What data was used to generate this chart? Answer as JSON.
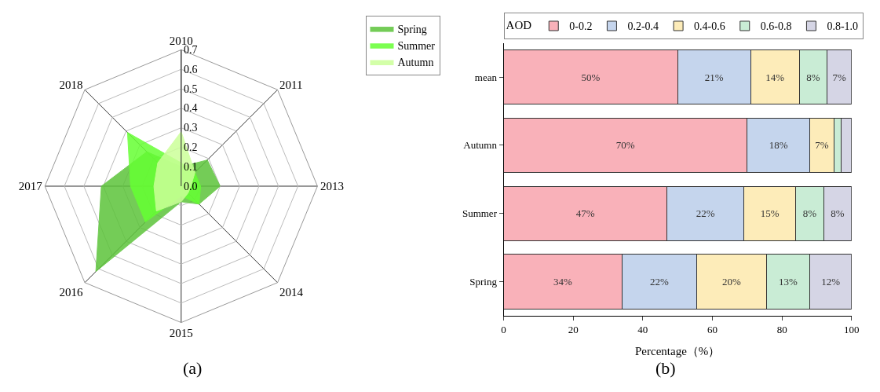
{
  "chart_data": [
    {
      "type": "radar",
      "categories": [
        "2010",
        "2011",
        "2013",
        "2014",
        "2015",
        "2016",
        "2017",
        "2018"
      ],
      "series": [
        {
          "name": "Spring",
          "color": "#5cc43a",
          "values": [
            0.1,
            0.19,
            0.2,
            0.13,
            0.08,
            0.62,
            0.41,
            0.25
          ]
        },
        {
          "name": "Summer",
          "color": "#66ff33",
          "values": [
            0.12,
            0.1,
            0.1,
            0.13,
            0.05,
            0.26,
            0.26,
            0.39
          ]
        },
        {
          "name": "Autumn",
          "color": "#ccff99",
          "values": [
            0.28,
            0.1,
            0.05,
            0.05,
            0.08,
            0.18,
            0.14,
            0.17
          ]
        }
      ],
      "ylim": [
        0,
        0.7
      ],
      "yticks": [
        {
          "value": 0,
          "label": "0.0"
        },
        0.1,
        0.2,
        0.3,
        0.4,
        0.5,
        0.6,
        0.7
      ],
      "legend": "top right",
      "annotations": [
        "(a)"
      ]
    },
    {
      "type": "bar",
      "orientation": "horizontal",
      "stacked": true,
      "categories": [
        "mean",
        "Autumn",
        "Summer",
        "Spring"
      ],
      "legend_title": "AOD",
      "legend": "top",
      "series": [
        {
          "name": "0-0.2",
          "color": "#f9b1b9",
          "values": [
            50,
            70,
            47,
            34
          ],
          "value_labels": [
            "50%",
            "70%",
            "47%",
            "34%"
          ]
        },
        {
          "name": "0.2-0.4",
          "color": "#c5d5ed",
          "values": [
            21,
            18,
            22,
            21.5
          ],
          "value_labels": [
            "21%",
            "18%",
            "22%",
            "22%"
          ]
        },
        {
          "name": "0.4-0.6",
          "color": "#fdecb9",
          "values": [
            14,
            7,
            15,
            20
          ],
          "value_labels": [
            "14%",
            "7%",
            "15%",
            "20%"
          ]
        },
        {
          "name": "0.6-0.8",
          "color": "#c9ecd5",
          "values": [
            8,
            2,
            8,
            12.5
          ],
          "value_labels": [
            "8%",
            null,
            "8%",
            "13%"
          ]
        },
        {
          "name": "0.8-1.0",
          "color": "#d5d5e5",
          "values": [
            7,
            3,
            8,
            12
          ],
          "value_labels": [
            "7%",
            null,
            "8%",
            "12%"
          ]
        }
      ],
      "xlim": [
        0,
        100
      ],
      "xticks": [
        0,
        20,
        40,
        60,
        80,
        100
      ],
      "xlabel": "Percentage（%）",
      "annotations": [
        "(b)"
      ]
    }
  ]
}
